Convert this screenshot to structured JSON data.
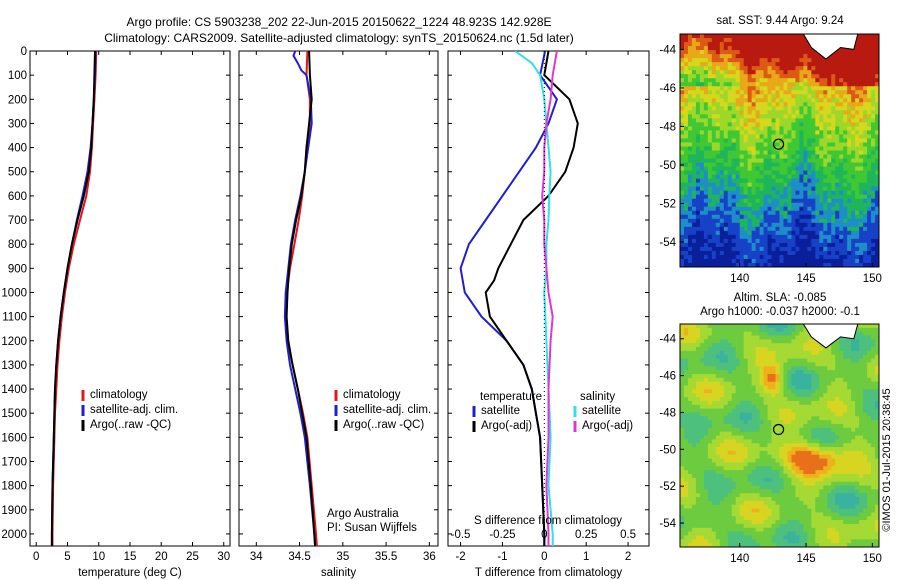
{
  "header": {
    "line1": "Argo profile: CS 5903238_202 22-Jun-2015 20150622_1224 48.923S 142.928E",
    "line2": "Climatology: CARS2009. Satellite-adjusted climatology: synTS_20150624.nc (1.5d later)"
  },
  "colors": {
    "climatology": "#e8141a",
    "satellite": "#1f1fcf",
    "argo": "#000000",
    "satellite_s": "#2ee0e8",
    "argo_s": "#e234d8"
  },
  "chart_data": [
    {
      "id": "temperature-profile",
      "type": "line",
      "xlabel": "temperature (deg C)",
      "ylim": [
        2050,
        0
      ],
      "xlim": [
        -1,
        31
      ],
      "yticks": [
        0,
        100,
        200,
        300,
        400,
        500,
        600,
        700,
        800,
        900,
        1000,
        1100,
        1200,
        1300,
        1400,
        1500,
        1600,
        1700,
        1800,
        1900,
        2000
      ],
      "xticks": [
        0,
        5,
        10,
        15,
        20,
        25,
        30
      ],
      "legend": [
        "climatology",
        "satellite-adj. clim.",
        "Argo(..raw -QC)"
      ],
      "series": [
        {
          "name": "climatology",
          "depth": [
            0,
            100,
            200,
            300,
            400,
            500,
            600,
            700,
            800,
            900,
            1000,
            1100,
            1200,
            1300,
            1400,
            1500,
            1600,
            1800,
            2000,
            2050
          ],
          "values": [
            9.6,
            9.5,
            9.3,
            9.1,
            8.9,
            8.6,
            8.0,
            7.0,
            6.0,
            5.2,
            4.6,
            4.1,
            3.7,
            3.4,
            3.2,
            3.0,
            2.9,
            2.7,
            2.6,
            2.6
          ]
        },
        {
          "name": "satellite-adj. clim.",
          "depth": [
            0,
            100,
            200,
            300,
            400,
            500,
            600,
            700,
            800,
            900,
            1000,
            1100,
            1200,
            1300,
            1400,
            1500,
            1600,
            1800,
            2000,
            2050
          ],
          "values": [
            9.5,
            9.4,
            9.2,
            9.0,
            8.7,
            8.2,
            7.4,
            6.5,
            5.7,
            5.0,
            4.4,
            3.9,
            3.5,
            3.2,
            3.0,
            2.9,
            2.8,
            2.6,
            2.5,
            2.5
          ]
        },
        {
          "name": "Argo(..raw -QC)",
          "depth": [
            0,
            100,
            200,
            300,
            400,
            500,
            600,
            700,
            800,
            900,
            1000,
            1100,
            1200,
            1300,
            1400,
            1500,
            1600,
            1800,
            2000,
            2050
          ],
          "values": [
            9.4,
            9.3,
            9.2,
            9.0,
            8.8,
            8.4,
            7.6,
            6.6,
            5.7,
            5.0,
            4.4,
            3.9,
            3.5,
            3.2,
            3.0,
            2.9,
            2.8,
            2.6,
            2.5,
            2.5
          ]
        }
      ]
    },
    {
      "id": "salinity-profile",
      "type": "line",
      "xlabel": "salinity",
      "ylim": [
        2050,
        0
      ],
      "xlim": [
        33.8,
        36.1
      ],
      "xticks": [
        34,
        34.5,
        35,
        35.5,
        36
      ],
      "legend": [
        "climatology",
        "satellite-adj. clim.",
        "Argo(..raw -QC)"
      ],
      "annotation": [
        "Argo Australia",
        "PI: Susan Wijffels"
      ],
      "series": [
        {
          "name": "climatology",
          "depth": [
            0,
            100,
            200,
            300,
            400,
            500,
            600,
            700,
            800,
            900,
            1000,
            1100,
            1200,
            1300,
            1400,
            1500,
            1600,
            1800,
            2000,
            2050
          ],
          "values": [
            34.59,
            34.58,
            34.62,
            34.62,
            34.58,
            34.56,
            34.53,
            34.49,
            34.44,
            34.39,
            34.35,
            34.33,
            34.36,
            34.42,
            34.48,
            34.54,
            34.59,
            34.64,
            34.69,
            34.7
          ]
        },
        {
          "name": "satellite-adj. clim.",
          "depth": [
            0,
            20,
            50,
            80,
            100,
            200,
            300,
            400,
            500,
            600,
            700,
            800,
            900,
            1000,
            1100,
            1200,
            1300,
            1400,
            1500,
            1600,
            1800,
            2000,
            2050
          ],
          "values": [
            34.45,
            34.43,
            34.48,
            34.52,
            34.58,
            34.63,
            34.64,
            34.6,
            34.56,
            34.51,
            34.45,
            34.4,
            34.37,
            34.34,
            34.33,
            34.35,
            34.39,
            34.45,
            34.51,
            34.56,
            34.62,
            34.67,
            34.68
          ]
        },
        {
          "name": "Argo(..raw -QC)",
          "depth": [
            0,
            100,
            200,
            300,
            400,
            500,
            600,
            700,
            800,
            900,
            1000,
            1100,
            1200,
            1300,
            1400,
            1500,
            1600,
            1800,
            2000,
            2050
          ],
          "values": [
            34.61,
            34.62,
            34.64,
            34.61,
            34.58,
            34.56,
            34.52,
            34.46,
            34.41,
            34.38,
            34.36,
            34.35,
            34.37,
            34.42,
            34.48,
            34.53,
            34.58,
            34.63,
            34.67,
            34.68
          ]
        }
      ]
    },
    {
      "id": "difference-profile",
      "type": "line",
      "xlabel": "T difference from climatology",
      "top_axis_label": "S difference from climatology",
      "xlim": [
        -2.3,
        2.5
      ],
      "xticks": [
        -2,
        -1,
        0,
        1,
        2
      ],
      "top_xticks": [
        "-0.5",
        "-0.25",
        "0",
        "0.25",
        "0.5"
      ],
      "top_xtick_positions": [
        -2,
        -1,
        0,
        1,
        2
      ],
      "legend_headers": [
        "temperature",
        "salinity"
      ],
      "legend": [
        "satellite",
        "Argo(-adj)",
        "satellite",
        "Argo(-adj)"
      ],
      "series": [
        {
          "name": "temperature satellite",
          "depth": [
            0,
            100,
            150,
            200,
            300,
            400,
            500,
            600,
            700,
            800,
            900,
            1000,
            1100,
            1200,
            1300,
            1400,
            1500,
            1600,
            1800,
            2000,
            2050
          ],
          "values": [
            0.02,
            -0.1,
            0.1,
            0.3,
            0.1,
            -0.2,
            -0.6,
            -1.0,
            -1.4,
            -1.8,
            -2.0,
            -1.9,
            -1.5,
            -0.9,
            -0.5,
            -0.3,
            -0.2,
            -0.1,
            -0.05,
            0.0,
            0.0
          ]
        },
        {
          "name": "temperature Argo(-adj)",
          "depth": [
            0,
            100,
            150,
            200,
            300,
            400,
            500,
            600,
            700,
            800,
            900,
            950,
            1000,
            1100,
            1200,
            1300,
            1400,
            1500,
            1600,
            1800,
            2000,
            2050
          ],
          "values": [
            0.1,
            0.0,
            0.3,
            0.6,
            0.8,
            0.7,
            0.5,
            0.1,
            -0.5,
            -0.8,
            -1.1,
            -1.2,
            -1.4,
            -1.3,
            -0.9,
            -0.5,
            -0.3,
            -0.2,
            -0.1,
            -0.05,
            0.0,
            0.0
          ]
        },
        {
          "name": "salinity satellite",
          "depth": [
            0,
            50,
            100,
            200,
            300,
            400,
            500,
            600,
            700,
            800,
            900,
            1000,
            1200,
            1400,
            1600,
            1800,
            2000,
            2050
          ],
          "values": [
            -0.7,
            -0.3,
            -0.1,
            0.0,
            0.05,
            0.1,
            0.15,
            0.12,
            0.1,
            0.05,
            0.05,
            0.0,
            0.05,
            0.1,
            0.15,
            0.1,
            0.2,
            0.2
          ]
        },
        {
          "name": "salinity Argo(-adj)",
          "depth": [
            0,
            100,
            200,
            300,
            400,
            500,
            600,
            700,
            800,
            900,
            1000,
            1100,
            1200,
            1400,
            1600,
            1800,
            2000,
            2050
          ],
          "values": [
            0.3,
            0.2,
            0.15,
            0.05,
            0.0,
            0.0,
            -0.05,
            0.0,
            0.0,
            0.05,
            0.1,
            0.2,
            0.15,
            0.1,
            0.1,
            0.05,
            0.1,
            0.1
          ]
        }
      ]
    },
    {
      "id": "sst-map",
      "type": "heatmap",
      "title": "sat. SST: 9.44  Argo: 9.24",
      "xticks": [
        140,
        145,
        150
      ],
      "yticks": [
        -44,
        -46,
        -48,
        -50,
        -52,
        -54
      ],
      "xlim": [
        135.5,
        150.5
      ],
      "ylim": [
        -55.3,
        -43.2
      ],
      "marker": {
        "lon": 142.928,
        "lat": -48.923
      }
    },
    {
      "id": "sla-map",
      "type": "heatmap",
      "title": "Altim. SLA: -0.085",
      "subtitle": "Argo h1000: -0.037 h2000: -0.1",
      "xticks": [
        140,
        145,
        150
      ],
      "yticks": [
        -44,
        -46,
        -48,
        -50,
        -52,
        -54
      ],
      "xlim": [
        135.5,
        150.5
      ],
      "ylim": [
        -55.3,
        -43.2
      ],
      "marker": {
        "lon": 142.928,
        "lat": -48.923
      }
    }
  ],
  "side_label": "©IMOS 01-Jul-2015 20:38:45"
}
